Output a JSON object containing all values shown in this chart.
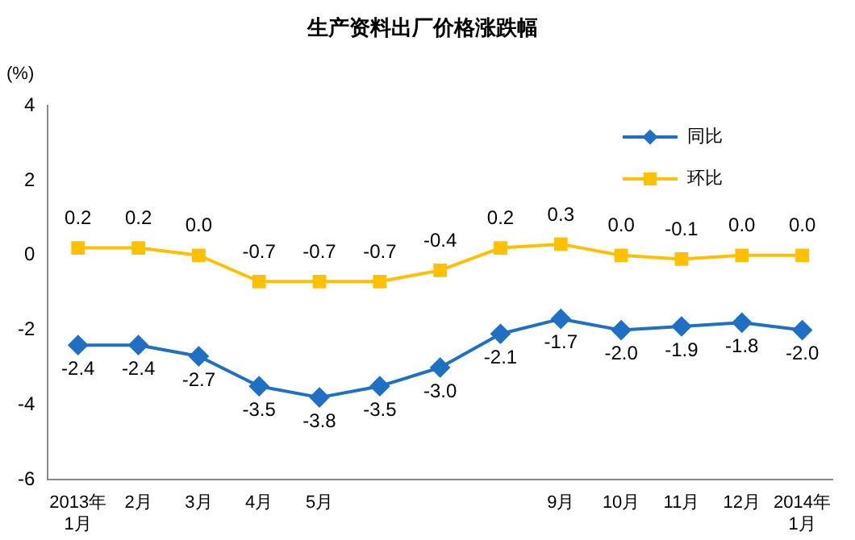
{
  "chart_data": {
    "type": "line",
    "title": "生产资料出厂价格涨跌幅",
    "ylabel": "(%)",
    "categories": [
      "2013年\n1月",
      "2月",
      "3月",
      "4月",
      "5月",
      null,
      null,
      null,
      "9月",
      "10月",
      "11月",
      "12月",
      "2014年\n1月"
    ],
    "series": [
      {
        "name": "同比",
        "color": "#1f6fc5",
        "marker": "diamond",
        "values": [
          -2.4,
          -2.4,
          -2.7,
          -3.5,
          -3.8,
          -3.5,
          -3.0,
          -2.1,
          -1.7,
          -2.0,
          -1.9,
          -1.8,
          -2.0
        ],
        "value_labels": [
          "-2.4",
          "-2.4",
          "-2.7",
          "-3.5",
          "-3.8",
          "-3.5",
          "-3.0",
          "-2.1",
          "-1.7",
          "-2.0",
          "-1.9",
          "-1.8",
          "-2.0"
        ]
      },
      {
        "name": "环比",
        "color": "#ffc000",
        "marker": "square",
        "values": [
          0.2,
          0.2,
          0.0,
          -0.7,
          -0.7,
          -0.7,
          -0.4,
          0.2,
          0.3,
          0.0,
          -0.1,
          0.0,
          0.0
        ],
        "value_labels": [
          "0.2",
          "0.2",
          "0.0",
          "-0.7",
          "-0.7",
          "-0.7",
          "-0.4",
          "0.2",
          "0.3",
          "0.0",
          "-0.1",
          "0.0",
          "0.0"
        ]
      }
    ],
    "ylim": [
      -6,
      4
    ],
    "yticks": [
      -6,
      -4,
      -2,
      0,
      2,
      4
    ],
    "grid": false,
    "legend": "top right",
    "line_style": "solid"
  }
}
